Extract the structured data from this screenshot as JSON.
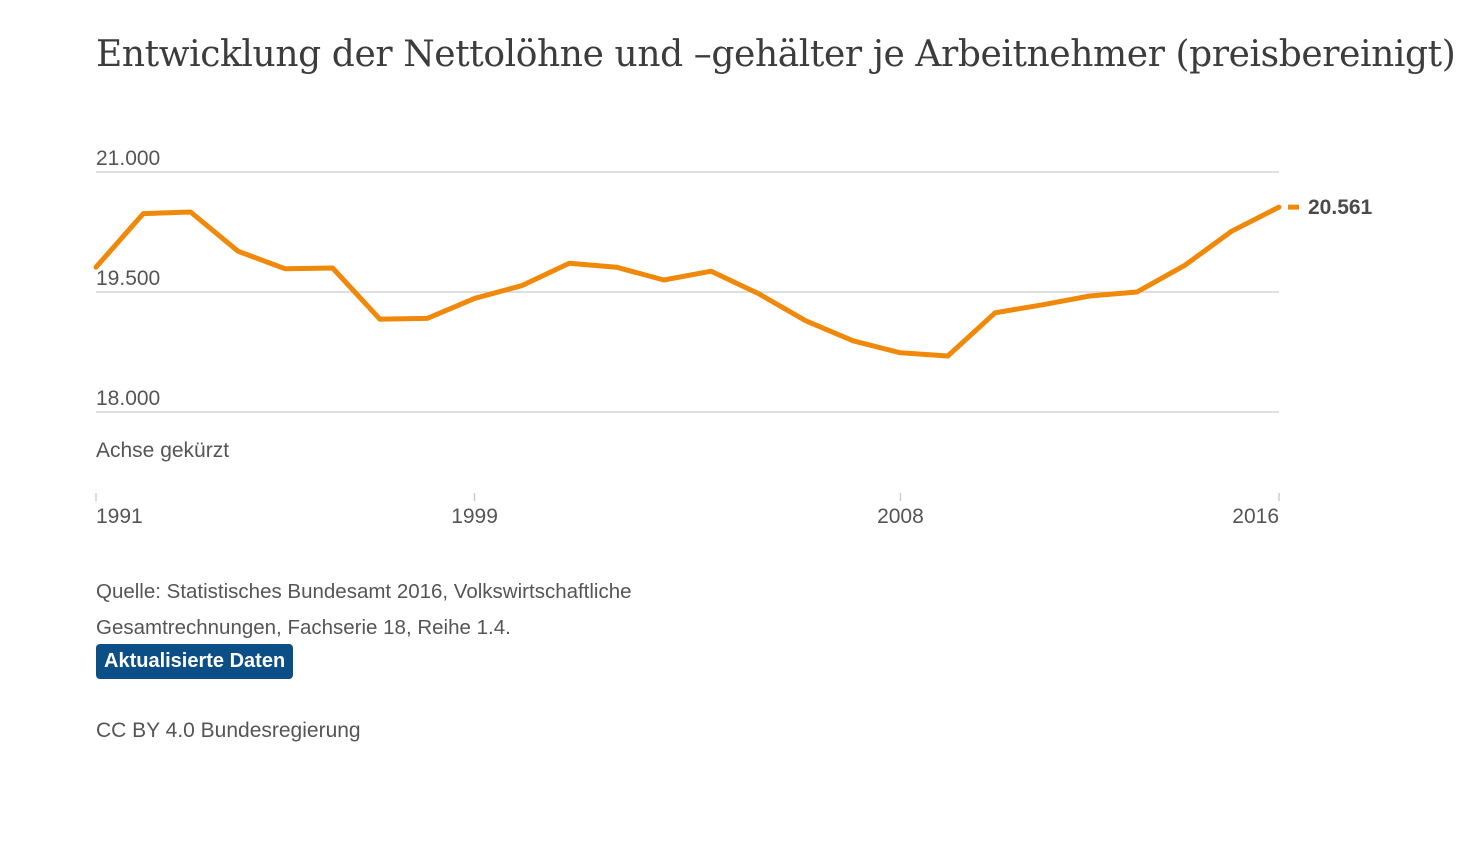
{
  "title": "Entwicklung der Nettolöhne und –gehälter je Arbeitnehmer (preisbereinigt)",
  "axis_note": "Achse gekürzt",
  "source": "Quelle: Statistisches Bundesamt 2016, Volkswirtschaftliche Gesamtrechnungen, Fachserie 18, Reihe 1.4.",
  "update_button": "Aktualisierte Daten",
  "license": "CC BY 4.0 Bundesregierung",
  "colors": {
    "line": "#f0890a",
    "grid": "#cccccc",
    "button": "#0c4e86"
  },
  "chart_data": {
    "type": "line",
    "title": "Entwicklung der Nettolöhne und –gehälter je Arbeitnehmer (preisbereinigt)",
    "xlabel": "",
    "ylabel": "",
    "xlim": [
      1991,
      2016
    ],
    "ylim": [
      18000,
      21000
    ],
    "y_ticks": [
      18000,
      19500,
      21000
    ],
    "y_tick_labels": [
      "18.000",
      "19.500",
      "21.000"
    ],
    "x_ticks": [
      1991,
      1999,
      2008,
      2016
    ],
    "x_tick_labels": [
      "1991",
      "1999",
      "2008",
      "2016"
    ],
    "grid": true,
    "legend": "none",
    "end_label": "20.561",
    "x": [
      1991,
      1992,
      1993,
      1994,
      1995,
      1996,
      1997,
      1998,
      1999,
      2000,
      2001,
      2002,
      2003,
      2004,
      2005,
      2006,
      2007,
      2008,
      2009,
      2010,
      2011,
      2012,
      2013,
      2014,
      2015,
      2016
    ],
    "values": [
      19810,
      20480,
      20500,
      20010,
      19790,
      19800,
      19160,
      19170,
      19420,
      19580,
      19860,
      19810,
      19650,
      19760,
      19480,
      19140,
      18890,
      18740,
      18700,
      19240,
      19340,
      19450,
      19500,
      19830,
      20260,
      20561
    ]
  }
}
